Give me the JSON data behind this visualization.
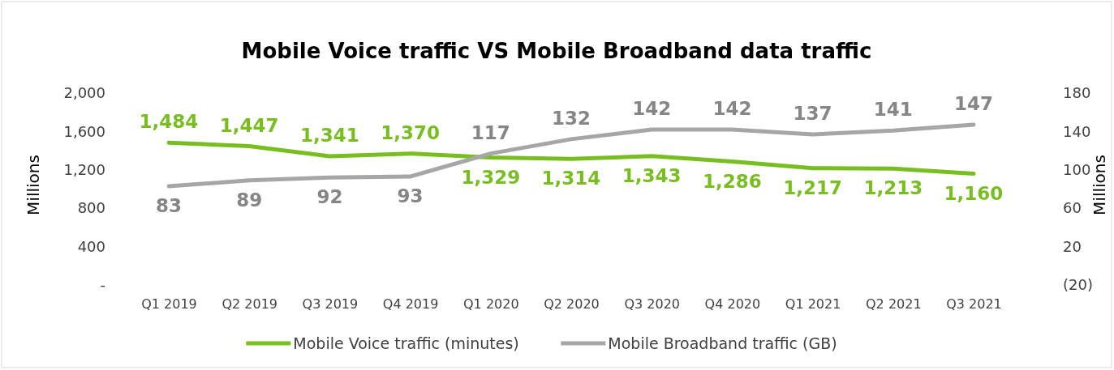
{
  "chart_data": {
    "type": "line",
    "title": "Mobile Voice traffic VS Mobile Broadband data traffic",
    "ylabel": "Millions",
    "y2label": "Millions",
    "categories": [
      "Q1 2019",
      "Q2 2019",
      "Q3 2019",
      "Q4 2019",
      "Q1 2020",
      "Q2 2020",
      "Q3 2020",
      "Q4 2020",
      "Q1 2021",
      "Q2 2021",
      "Q3 2021"
    ],
    "series": [
      {
        "name": "Mobile Voice traffic (minutes)",
        "color": "#78be20",
        "values": [
          1484,
          1447,
          1341,
          1370,
          1329,
          1314,
          1343,
          1286,
          1217,
          1213,
          1160
        ],
        "value_labels": [
          "1,484",
          "1,447",
          "1,341",
          "1,370",
          "1,329",
          "1,314",
          "1,343",
          "1,286",
          "1,217",
          "1,213",
          "1,160"
        ]
      },
      {
        "name": "Mobile Broadband traffic (GB)",
        "color": "#a6a6a6",
        "axis": "y2",
        "values": [
          83,
          89,
          92,
          93,
          117,
          132,
          142,
          142,
          137,
          141,
          147
        ],
        "value_labels": [
          "83",
          "89",
          "92",
          "93",
          "117",
          "132",
          "142",
          "142",
          "137",
          "141",
          "147"
        ]
      }
    ],
    "ylim": [
      0,
      2000
    ],
    "yticks": [
      {
        "value": 0,
        "label": "-"
      },
      400,
      800,
      {
        "value": 1200,
        "label": "1,200"
      },
      {
        "value": 1600,
        "label": "1,600"
      },
      {
        "value": 2000,
        "label": "2,000"
      }
    ],
    "y2lim": [
      -20,
      180
    ],
    "y2ticks": [
      {
        "value": -20,
        "label": "(20)"
      },
      20,
      60,
      100,
      140,
      180
    ],
    "legend": "bottom",
    "grid": false,
    "marker": "none",
    "line_style": "solid"
  }
}
